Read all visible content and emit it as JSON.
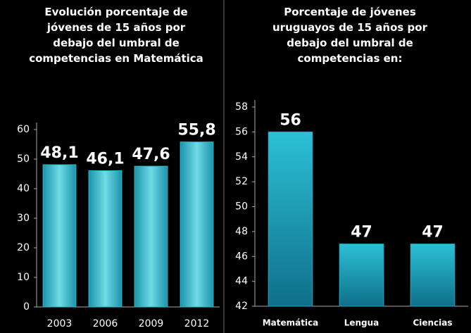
{
  "chart_data": [
    {
      "type": "bar",
      "title": "Evolución porcentaje de jóvenes de 15 años por debajo del umbral de competencias en Matemática",
      "categories": [
        "2003",
        "2006",
        "2009",
        "2012"
      ],
      "values": [
        48.1,
        46.1,
        47.6,
        55.8
      ],
      "value_labels": [
        "48,1",
        "46,1",
        "47,6",
        "55,8"
      ],
      "color": "#2fb8cc",
      "ylim": [
        0,
        60
      ],
      "yticks": [
        0,
        10,
        20,
        30,
        40,
        50,
        60
      ],
      "grid": false
    },
    {
      "type": "bar",
      "title": "Porcentaje de jóvenes uruguayos de 15 años por debajo del umbral de competencias en:",
      "categories": [
        "Matemática",
        "Lengua",
        "Ciencias"
      ],
      "values": [
        56,
        47,
        47
      ],
      "color": "#1fa6c0",
      "ylim": [
        42,
        58
      ],
      "yticks": [
        42,
        44,
        46,
        48,
        50,
        52,
        54,
        56,
        58
      ],
      "grid": false
    }
  ]
}
